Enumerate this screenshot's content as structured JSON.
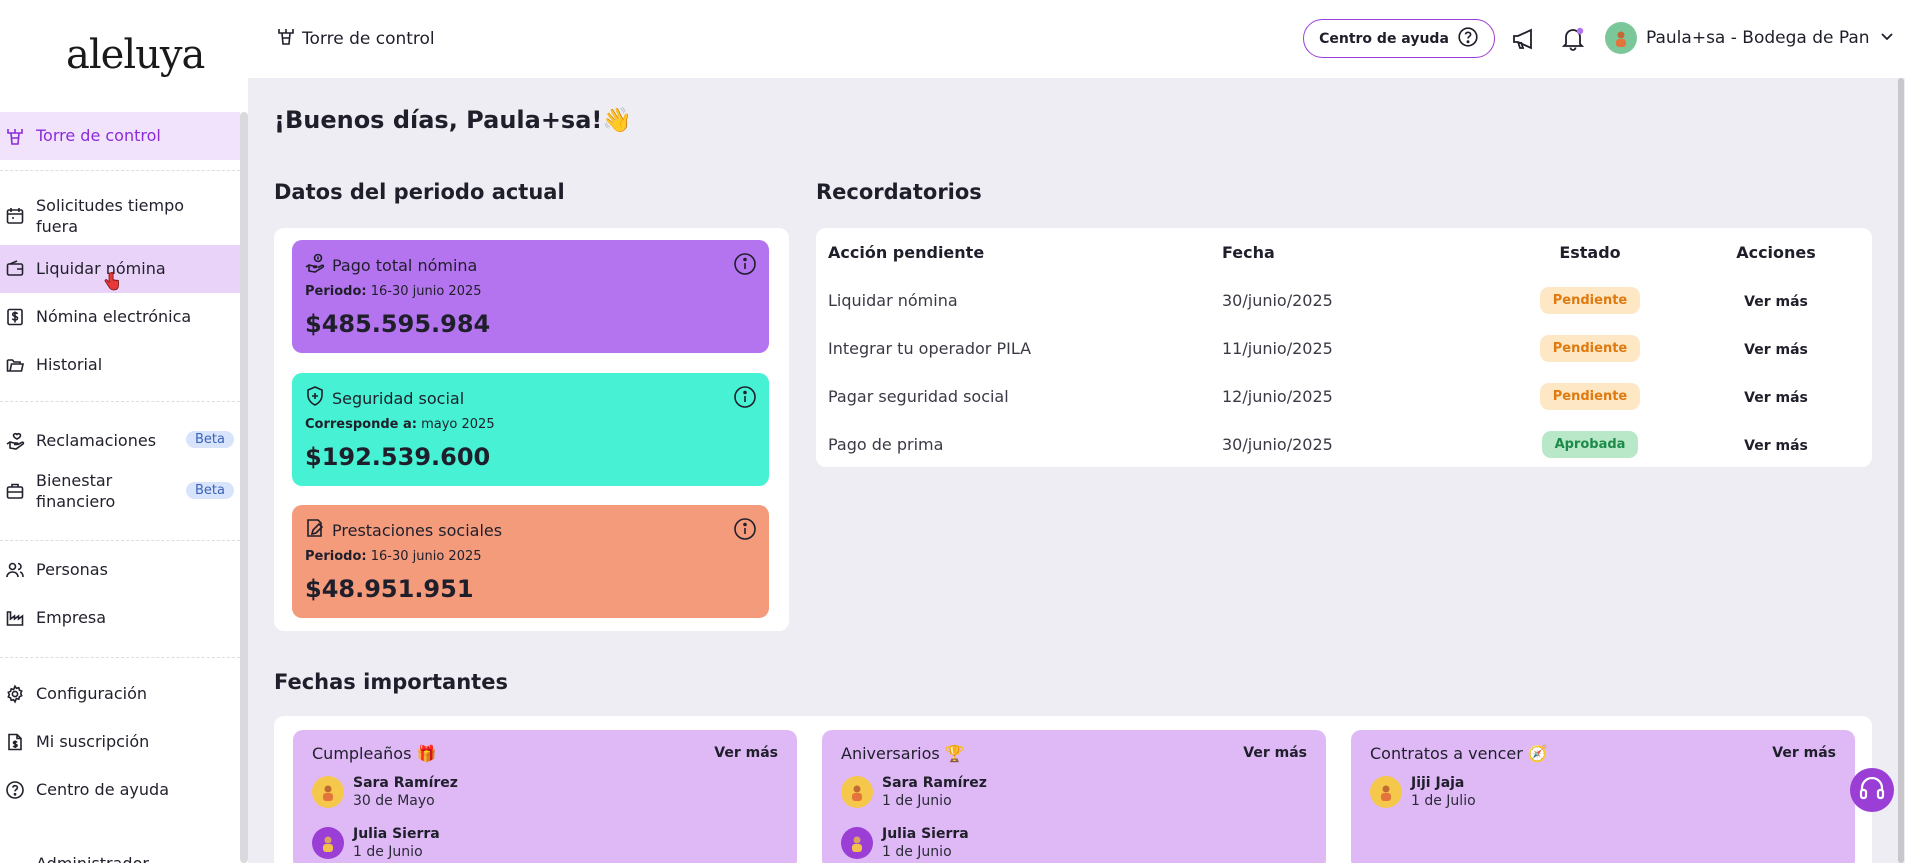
{
  "sidebar": {
    "logo": "aleluya",
    "items": [
      {
        "label": "Torre de control"
      },
      {
        "label": "Solicitudes tiempo fuera"
      },
      {
        "label": "Liquidar nómina"
      },
      {
        "label": "Nómina electrónica"
      },
      {
        "label": "Historial"
      },
      {
        "label": "Reclamaciones",
        "badge": "Beta"
      },
      {
        "label": "Bienestar financiero",
        "badge": "Beta"
      },
      {
        "label": "Personas"
      },
      {
        "label": "Empresa"
      },
      {
        "label": "Configuración"
      },
      {
        "label": "Mi suscripción"
      },
      {
        "label": "Centro de ayuda"
      },
      {
        "label": "Administrador"
      }
    ]
  },
  "topbar": {
    "title": "Torre de control",
    "help_button": "Centro de ayuda",
    "user_name": "Paula+sa - Bodega de Pan"
  },
  "main": {
    "greeting": "¡Buenos días, Paula+sa!",
    "greeting_emoji": "👋",
    "period": {
      "title": "Datos del periodo actual",
      "cards": [
        {
          "title": "Pago total nómina",
          "sub_label": "Periodo:",
          "sub_value": "16-30 junio 2025",
          "amount": "$485.595.984",
          "color": "#b574ef"
        },
        {
          "title": "Seguridad social",
          "sub_label": "Corresponde a:",
          "sub_value": "mayo 2025",
          "amount": "$192.539.600",
          "color": "#46f2d3"
        },
        {
          "title": "Prestaciones sociales",
          "sub_label": "Periodo:",
          "sub_value": "16-30 junio 2025",
          "amount": "$48.951.951",
          "color": "#f49b7c"
        }
      ]
    },
    "reminders": {
      "title": "Recordatorios",
      "columns": [
        "Acción pendiente",
        "Fecha",
        "Estado",
        "Acciones"
      ],
      "rows": [
        {
          "action": "Liquidar nómina",
          "date": "30/junio/2025",
          "status": "Pendiente",
          "more": "Ver más"
        },
        {
          "action": "Integrar tu operador PILA",
          "date": "11/junio/2025",
          "status": "Pendiente",
          "more": "Ver más"
        },
        {
          "action": "Pagar seguridad social",
          "date": "12/junio/2025",
          "status": "Pendiente",
          "more": "Ver más"
        },
        {
          "action": "Pago de prima",
          "date": "30/junio/2025",
          "status": "Aprobada",
          "more": "Ver más"
        }
      ]
    },
    "dates": {
      "title": "Fechas importantes",
      "cards": [
        {
          "title": "Cumpleaños 🎁",
          "more": "Ver más",
          "people": [
            {
              "name": "Sara Ramírez",
              "date": "30 de Mayo"
            },
            {
              "name": "Julia Sierra",
              "date": "1 de Junio"
            }
          ]
        },
        {
          "title": "Aniversarios 🏆",
          "more": "Ver más",
          "people": [
            {
              "name": "Sara Ramírez",
              "date": "1 de Junio"
            },
            {
              "name": "Julia Sierra",
              "date": "1 de Junio"
            }
          ]
        },
        {
          "title": "Contratos a vencer 🧭",
          "more": "Ver más",
          "people": [
            {
              "name": "Jiji Jaja",
              "date": "1 de Julio"
            }
          ]
        }
      ]
    }
  },
  "colors": {
    "accent": "#8b2cd9",
    "pending": "#e07a0f",
    "approved": "#1d8a4a"
  }
}
